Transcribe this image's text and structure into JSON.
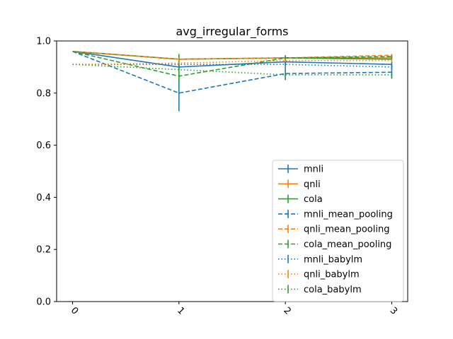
{
  "chart_data": {
    "type": "line",
    "title": "avg_irregular_forms",
    "xlabel": "",
    "ylabel": "",
    "x": [
      0,
      1,
      2,
      3
    ],
    "x_tick_labels": [
      "0",
      "1",
      "2",
      "3"
    ],
    "y_tick_labels": [
      "0.0",
      "0.2",
      "0.4",
      "0.6",
      "0.8",
      "1.0"
    ],
    "xlim": [
      -0.15,
      3.15
    ],
    "ylim": [
      0.0,
      1.0
    ],
    "grid": false,
    "legend_position": "lower-right",
    "series": [
      {
        "name": "mnli",
        "color": "#1f77b4",
        "style": "solid",
        "values": [
          0.96,
          0.9,
          0.92,
          0.91
        ],
        "errors": [
          0,
          0.01,
          0.01,
          0.01
        ]
      },
      {
        "name": "qnli",
        "color": "#ff7f0e",
        "style": "solid",
        "values": [
          0.96,
          0.93,
          0.935,
          0.935
        ],
        "errors": [
          0,
          0.005,
          0.005,
          0.005
        ]
      },
      {
        "name": "cola",
        "color": "#2ca02c",
        "style": "solid",
        "values": [
          0.96,
          0.93,
          0.935,
          0.93
        ],
        "errors": [
          0,
          0.02,
          0.01,
          0.005
        ]
      },
      {
        "name": "mnli_mean_pooling",
        "color": "#1f77b4",
        "style": "dashed",
        "values": [
          0.96,
          0.8,
          0.875,
          0.88
        ],
        "errors": [
          0,
          0.07,
          0.025,
          0.025
        ]
      },
      {
        "name": "qnli_mean_pooling",
        "color": "#ff7f0e",
        "style": "dashed",
        "values": [
          0.96,
          0.93,
          0.935,
          0.945
        ],
        "errors": [
          0,
          0.005,
          0.005,
          0.005
        ]
      },
      {
        "name": "cola_mean_pooling",
        "color": "#2ca02c",
        "style": "dashed",
        "values": [
          0.96,
          0.865,
          0.935,
          0.94
        ],
        "errors": [
          0,
          0.02,
          0.01,
          0.005
        ]
      },
      {
        "name": "mnli_babylm",
        "color": "#1f77b4",
        "style": "dotted",
        "values": [
          0.91,
          0.91,
          0.91,
          0.9
        ],
        "errors": [
          0,
          0.01,
          0.01,
          0.01
        ]
      },
      {
        "name": "qnli_babylm",
        "color": "#ff7f0e",
        "style": "dotted",
        "values": [
          0.91,
          0.915,
          0.925,
          0.925
        ],
        "errors": [
          0,
          0.005,
          0.005,
          0.005
        ]
      },
      {
        "name": "cola_babylm",
        "color": "#2ca02c",
        "style": "dotted",
        "values": [
          0.91,
          0.89,
          0.87,
          0.87
        ],
        "errors": [
          0,
          0.01,
          0.01,
          0.01
        ]
      }
    ]
  }
}
